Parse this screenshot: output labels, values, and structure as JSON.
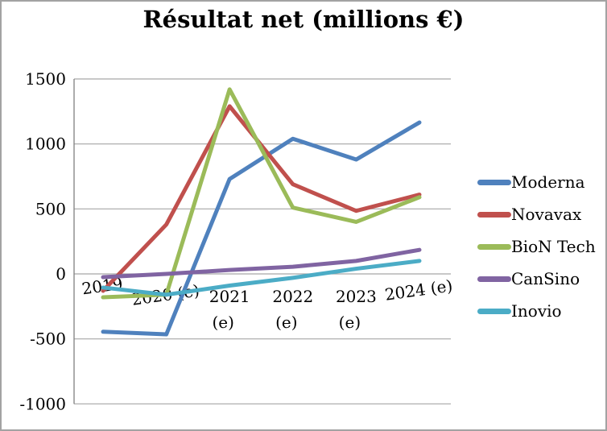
{
  "title": "Résultat net (millions €)",
  "chart_data": {
    "type": "line",
    "title": "Résultat net (millions €)",
    "categories": [
      "2019",
      "2020 (e)",
      "2021 (e)",
      "2022 (e)",
      "2023 (e)",
      "2024 (e)"
    ],
    "category_labels": [
      {
        "lines": [
          "2019"
        ],
        "rotated": true
      },
      {
        "lines": [
          "2020 (e)"
        ],
        "rotated": true
      },
      {
        "lines": [
          "2021",
          "(e)"
        ],
        "rotated": false
      },
      {
        "lines": [
          "2022",
          "(e)"
        ],
        "rotated": false
      },
      {
        "lines": [
          "2023",
          "(e)"
        ],
        "rotated": false
      },
      {
        "lines": [
          "2024 (e)"
        ],
        "rotated": true
      }
    ],
    "yticks": [
      1500,
      1000,
      500,
      0,
      -500,
      -1000
    ],
    "ylim": [
      -1000,
      1500
    ],
    "xlabel": "",
    "ylabel": "",
    "grid": "horizontal",
    "legend_position": "right",
    "series": [
      {
        "name": "Moderna",
        "color": "#4F81BD",
        "values": [
          -445,
          -465,
          730,
          1040,
          880,
          1165
        ]
      },
      {
        "name": "Novavax",
        "color": "#C0504D",
        "values": [
          -130,
          380,
          1290,
          690,
          485,
          610
        ]
      },
      {
        "name": "BioN Tech",
        "color": "#9BBB59",
        "values": [
          -180,
          -160,
          1420,
          510,
          400,
          590
        ]
      },
      {
        "name": "CanSino",
        "color": "#8064A2",
        "values": [
          -25,
          0,
          30,
          55,
          100,
          185
        ]
      },
      {
        "name": "Inovio",
        "color": "#4BACC6",
        "values": [
          -105,
          -160,
          -90,
          -30,
          40,
          100
        ]
      }
    ]
  },
  "colors": {
    "axis": "#808080",
    "gridline": "#A6A6A6",
    "border": "#A3A3A3",
    "text": "#000000"
  }
}
